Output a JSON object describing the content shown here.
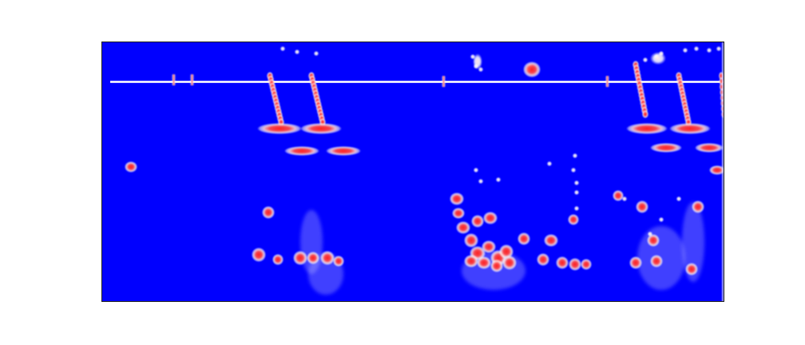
{
  "colors": {
    "page_background": "#ffffff",
    "field_background": "#0000ff",
    "blob_core": "#ff2a2a",
    "blob_halo": "#ffffff",
    "frame": "#1a1a1a"
  },
  "image": {
    "kind": "spectrogram-like heatmap",
    "palette": "blue-white-red"
  }
}
